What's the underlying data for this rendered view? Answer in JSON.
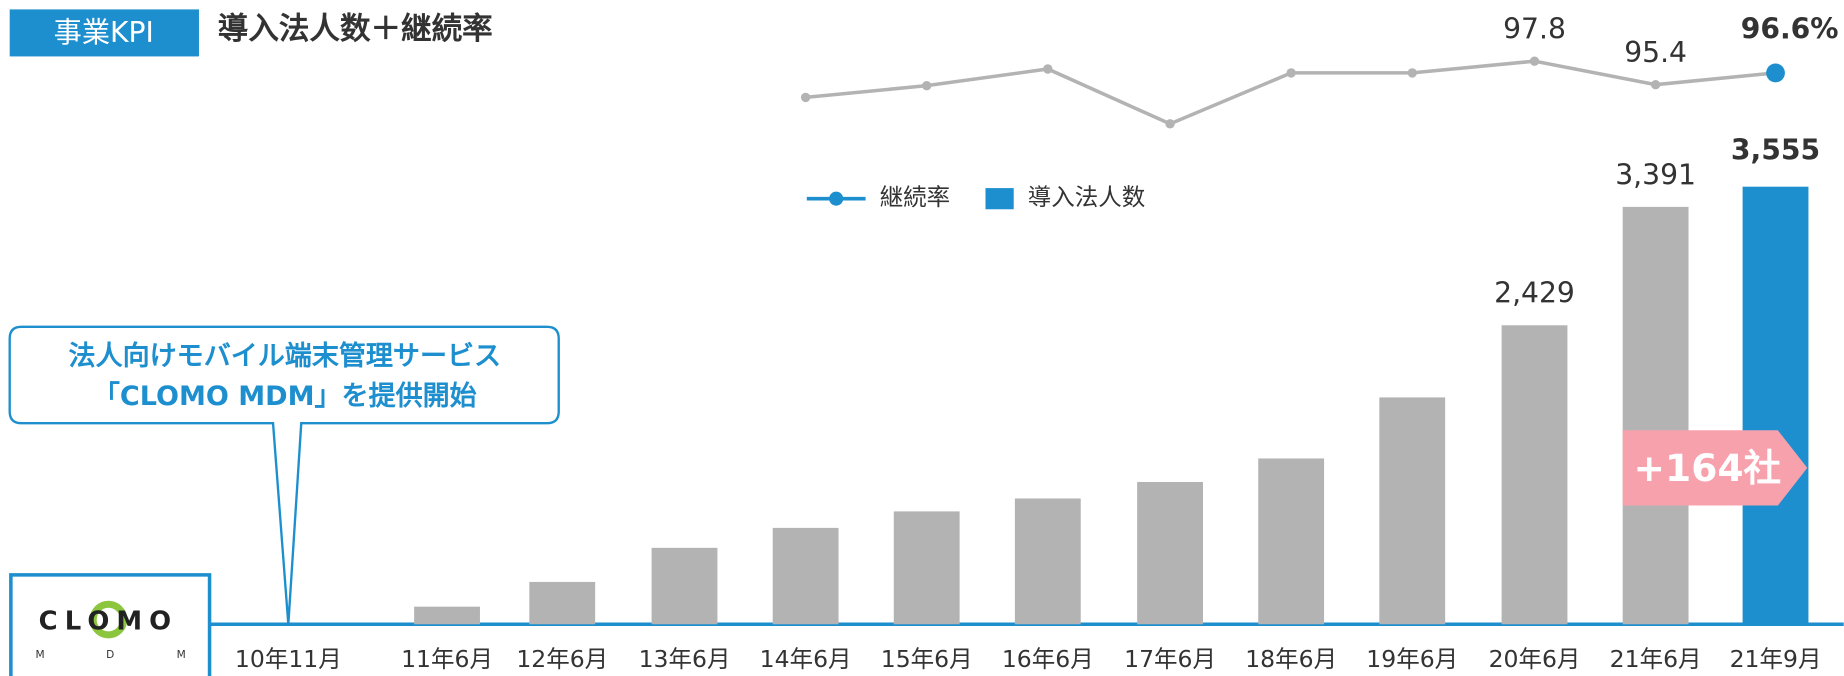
{
  "header": {
    "badge": "事業KPI",
    "title": "導入法人数＋継続率"
  },
  "callout": {
    "lines": [
      "法人向けモバイル端末管理サービス",
      "「CLOMO MDM」を提供開始"
    ]
  },
  "logo": {
    "name": "CLOMO",
    "sub": [
      "M",
      "D",
      "M"
    ]
  },
  "chart_data": {
    "type": "bar",
    "categories": [
      "10年11月",
      "11年6月",
      "12年6月",
      "13年6月",
      "14年6月",
      "15年6月",
      "16年6月",
      "17年6月",
      "18年6月",
      "19年6月",
      "20年6月",
      "21年6月",
      "21年9月"
    ],
    "series": [
      {
        "name": "導入法人数",
        "type": "bar",
        "color": "#b3b3b3",
        "highlight_color": "#1e8fce",
        "values": [
          null,
          143,
          344,
          621,
          783,
          917,
          1022,
          1156,
          1347,
          1843,
          2429,
          3391,
          3555
        ],
        "value_labels": [
          null,
          null,
          null,
          null,
          null,
          null,
          null,
          null,
          null,
          null,
          "2,429",
          "3,391",
          "3,555"
        ]
      },
      {
        "name": "継続率",
        "type": "line",
        "color": "#b3b3b3",
        "highlight_color": "#1e8fce",
        "values": [
          null,
          null,
          null,
          null,
          94.1,
          95.3,
          97.0,
          91.4,
          96.6,
          96.6,
          97.8,
          95.4,
          96.6
        ],
        "value_labels": [
          null,
          null,
          null,
          null,
          null,
          null,
          null,
          null,
          null,
          null,
          "97.8",
          "95.4",
          "96.6"
        ]
      }
    ],
    "rate_unit": "%",
    "annotation": "+164社"
  }
}
